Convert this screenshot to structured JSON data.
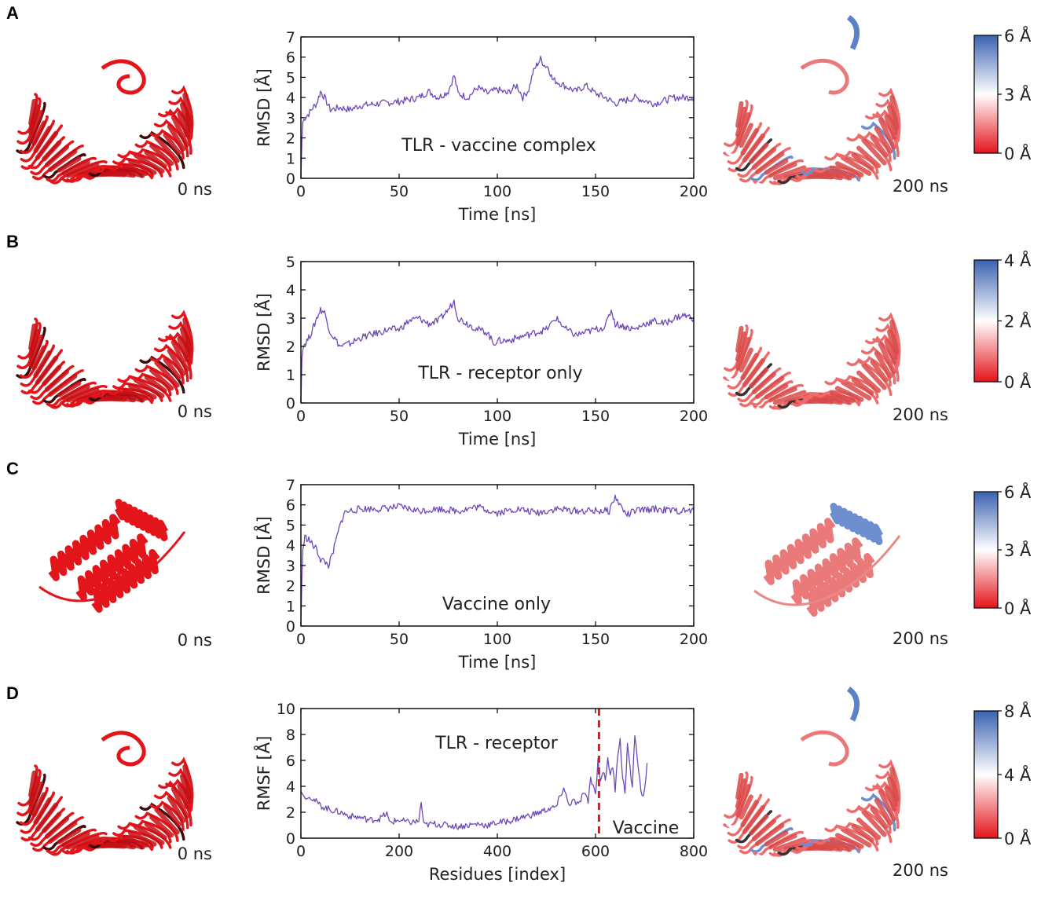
{
  "colors": {
    "series": "#6f49b8",
    "protein_red": "#e4141b",
    "dark": "#3a0a0a",
    "colorbar_top": "#3b62b0",
    "colorbar_mid": "#ffffff",
    "colorbar_bottom": "#e4141b",
    "divider": "#e4141b"
  },
  "panels": [
    {
      "label": "A",
      "structure_left": {
        "time": "0 ns",
        "shape": "horseshoe-complex"
      },
      "structure_right": {
        "time": "200 ns",
        "shape": "horseshoe-complex"
      },
      "colorbar": {
        "ticks": [
          "6 Å",
          "3 Å",
          "0 Å"
        ]
      }
    },
    {
      "label": "B",
      "structure_left": {
        "time": "0 ns",
        "shape": "horseshoe"
      },
      "structure_right": {
        "time": "200 ns",
        "shape": "horseshoe"
      },
      "colorbar": {
        "ticks": [
          "4 Å",
          "2 Å",
          "0 Å"
        ]
      }
    },
    {
      "label": "C",
      "structure_left": {
        "time": "0 ns",
        "shape": "helices"
      },
      "structure_right": {
        "time": "200 ns",
        "shape": "helices"
      },
      "colorbar": {
        "ticks": [
          "6 Å",
          "3 Å",
          "0 Å"
        ]
      }
    },
    {
      "label": "D",
      "structure_left": {
        "time": "0 ns",
        "shape": "horseshoe-complex"
      },
      "structure_right": {
        "time": "200 ns",
        "shape": "horseshoe-complex"
      },
      "colorbar": {
        "ticks": [
          "8 Å",
          "4 Å",
          "0 Å"
        ]
      }
    }
  ],
  "chart_data": [
    {
      "type": "line",
      "panel": "A",
      "xlabel": "Time [ns]",
      "ylabel": "RMSD [Å]",
      "xlim": [
        0,
        200
      ],
      "ylim": [
        0,
        7
      ],
      "xticks": [
        0,
        50,
        100,
        150,
        200
      ],
      "yticks": [
        0,
        1,
        2,
        3,
        4,
        5,
        6,
        7
      ],
      "annotations": [
        {
          "text": "TLR - vaccine complex"
        }
      ],
      "series": [
        {
          "name": "TLR - vaccine complex",
          "x": [
            0,
            0.5,
            1,
            2,
            4,
            6,
            8,
            10,
            12,
            15,
            20,
            25,
            30,
            40,
            50,
            60,
            65,
            70,
            75,
            78,
            80,
            85,
            90,
            95,
            100,
            105,
            110,
            113,
            116,
            118,
            120,
            122,
            124,
            126,
            128,
            132,
            136,
            140,
            145,
            150,
            155,
            160,
            170,
            180,
            190,
            200
          ],
          "y": [
            0,
            2.0,
            2.8,
            3.0,
            3.2,
            3.5,
            3.7,
            4.3,
            4.0,
            3.4,
            3.5,
            3.4,
            3.6,
            3.7,
            3.8,
            4.0,
            4.3,
            4.0,
            4.3,
            5.1,
            4.2,
            4.0,
            4.5,
            4.2,
            4.4,
            4.2,
            4.6,
            4.0,
            4.4,
            5.2,
            5.6,
            5.9,
            5.6,
            5.5,
            4.9,
            4.7,
            4.5,
            4.3,
            4.6,
            4.2,
            4.0,
            3.7,
            4.0,
            3.7,
            4.0,
            4.0
          ]
        }
      ]
    },
    {
      "type": "line",
      "panel": "B",
      "xlabel": "Time [ns]",
      "ylabel": "RMSD [Å]",
      "xlim": [
        0,
        200
      ],
      "ylim": [
        0,
        5
      ],
      "xticks": [
        0,
        50,
        100,
        150,
        200
      ],
      "yticks": [
        0,
        1,
        2,
        3,
        4,
        5
      ],
      "annotations": [
        {
          "text": "TLR - receptor only"
        }
      ],
      "series": [
        {
          "name": "TLR - receptor only",
          "x": [
            0,
            0.5,
            1,
            2,
            4,
            6,
            8,
            10,
            12,
            15,
            20,
            25,
            30,
            35,
            40,
            45,
            50,
            55,
            60,
            65,
            70,
            75,
            78,
            80,
            85,
            90,
            95,
            98,
            100,
            105,
            110,
            115,
            120,
            125,
            130,
            135,
            140,
            145,
            150,
            155,
            158,
            160,
            165,
            170,
            175,
            180,
            185,
            190,
            195,
            200
          ],
          "y": [
            0,
            1.6,
            2.0,
            2.1,
            2.3,
            2.6,
            3.0,
            3.3,
            3.2,
            2.5,
            2.0,
            2.1,
            2.3,
            2.4,
            2.5,
            2.6,
            2.6,
            2.9,
            3.0,
            2.8,
            2.9,
            3.3,
            3.6,
            3.0,
            2.8,
            2.6,
            2.5,
            2.1,
            2.2,
            2.2,
            2.3,
            2.4,
            2.5,
            2.6,
            3.0,
            2.6,
            2.4,
            2.5,
            2.6,
            2.7,
            3.3,
            2.8,
            2.7,
            2.6,
            2.8,
            2.9,
            2.8,
            3.0,
            3.1,
            3.0
          ]
        }
      ]
    },
    {
      "type": "line",
      "panel": "C",
      "xlabel": "Time [ns]",
      "ylabel": "RMSD [Å]",
      "xlim": [
        0,
        200
      ],
      "ylim": [
        0,
        7
      ],
      "xticks": [
        0,
        50,
        100,
        150,
        200
      ],
      "yticks": [
        0,
        1,
        2,
        3,
        4,
        5,
        6,
        7
      ],
      "annotations": [
        {
          "text": "Vaccine only"
        }
      ],
      "series": [
        {
          "name": "Vaccine only",
          "x": [
            0,
            0.5,
            1,
            2,
            4,
            6,
            8,
            10,
            12,
            14,
            16,
            18,
            20,
            22,
            25,
            30,
            40,
            50,
            60,
            70,
            80,
            90,
            100,
            110,
            120,
            130,
            140,
            150,
            157,
            160,
            163,
            166,
            170,
            180,
            190,
            200
          ],
          "y": [
            0,
            2.5,
            3.8,
            4.4,
            4.3,
            4.0,
            3.8,
            3.3,
            3.2,
            3.0,
            3.5,
            4.3,
            5.0,
            5.6,
            5.7,
            5.8,
            5.8,
            5.9,
            5.7,
            5.8,
            5.7,
            5.9,
            5.6,
            5.8,
            5.6,
            5.8,
            5.7,
            5.7,
            5.7,
            6.4,
            5.9,
            5.5,
            5.7,
            5.8,
            5.7,
            5.7
          ]
        }
      ]
    },
    {
      "type": "line",
      "panel": "D",
      "xlabel": "Residues [index]",
      "ylabel": "RMSF [Å]",
      "xlim": [
        0,
        800
      ],
      "ylim": [
        0,
        10
      ],
      "xticks": [
        0,
        200,
        400,
        600,
        800
      ],
      "yticks": [
        0,
        2,
        4,
        6,
        8,
        10
      ],
      "annotations": [
        {
          "text": "TLR - receptor"
        },
        {
          "text": "Vaccine"
        }
      ],
      "divider_x": 607,
      "series": [
        {
          "name": "RMSF",
          "x": [
            0,
            10,
            20,
            40,
            60,
            80,
            100,
            120,
            140,
            160,
            175,
            180,
            200,
            220,
            240,
            245,
            250,
            270,
            300,
            320,
            340,
            360,
            380,
            400,
            420,
            440,
            460,
            480,
            500,
            520,
            535,
            545,
            555,
            565,
            575,
            585,
            590,
            600,
            605,
            610,
            615,
            620,
            625,
            630,
            635,
            640,
            645,
            650,
            655,
            660,
            665,
            670,
            675,
            680,
            685,
            690,
            695,
            700,
            705
          ],
          "y": [
            3.6,
            3.0,
            3.2,
            2.5,
            2.2,
            2.0,
            1.7,
            1.6,
            1.4,
            1.5,
            1.9,
            1.2,
            1.4,
            1.2,
            1.3,
            2.8,
            1.0,
            1.1,
            1.0,
            0.9,
            1.0,
            1.1,
            1.0,
            1.2,
            1.3,
            1.5,
            1.7,
            1.9,
            2.2,
            2.4,
            3.9,
            2.6,
            2.9,
            2.5,
            3.5,
            2.8,
            4.7,
            3.4,
            6.0,
            4.5,
            5.2,
            4.4,
            6.3,
            4.8,
            5.5,
            3.8,
            6.4,
            7.8,
            4.6,
            3.6,
            7.2,
            5.5,
            3.7,
            8.1,
            6.2,
            4.4,
            3.2,
            3.6,
            5.8
          ]
        }
      ]
    }
  ]
}
